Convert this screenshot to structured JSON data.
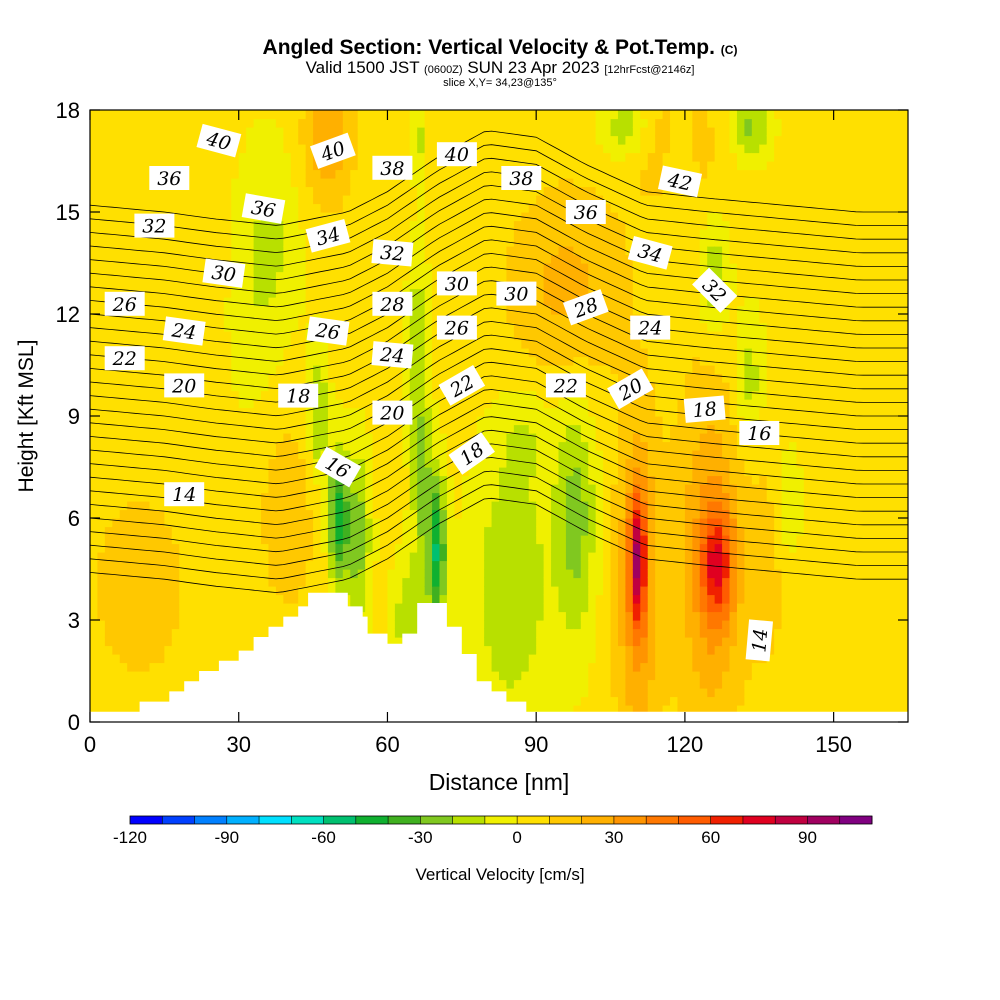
{
  "header": {
    "title": "Angled Section: Vertical Velocity & Pot.Temp.",
    "title_tag": "(C)",
    "subtitle_a": "Valid 1500 JST",
    "subtitle_b": "(0600Z)",
    "subtitle_c": "SUN 23 Apr 2023",
    "subtitle_d": "[12hrFcst@2146z]",
    "slice": "slice X,Y= 34,23@135°"
  },
  "chart_data": {
    "type": "heatmap",
    "xlabel": "Distance [nm]",
    "ylabel": "Height [Kft MSL]",
    "xlim": [
      0,
      165
    ],
    "ylim": [
      0,
      18
    ],
    "x_ticks": [
      0,
      30,
      60,
      90,
      120,
      150
    ],
    "y_ticks": [
      0,
      3,
      6,
      9,
      12,
      15,
      18
    ],
    "colorbar": {
      "label": "Vertical Velocity [cm/s]",
      "range": [
        -120,
        110
      ],
      "step": 10,
      "ticks": [
        -120,
        -90,
        -60,
        -30,
        0,
        30,
        60,
        90
      ],
      "colors": [
        "#0000ff",
        "#0040ff",
        "#0080ff",
        "#00b0ff",
        "#00e0ff",
        "#00e0c0",
        "#00c070",
        "#10b030",
        "#40b020",
        "#80c820",
        "#b8e000",
        "#f0f000",
        "#ffe000",
        "#ffc800",
        "#ffb000",
        "#ff9400",
        "#ff7800",
        "#ff5c00",
        "#f02000",
        "#e00020",
        "#c00040",
        "#a00060",
        "#800080"
      ]
    },
    "terrain": [
      [
        0,
        0.3
      ],
      [
        10,
        0.3
      ],
      [
        10,
        0.6
      ],
      [
        16,
        0.6
      ],
      [
        16,
        0.9
      ],
      [
        19,
        0.9
      ],
      [
        19,
        1.2
      ],
      [
        22,
        1.2
      ],
      [
        22,
        1.5
      ],
      [
        26,
        1.5
      ],
      [
        26,
        1.8
      ],
      [
        30,
        1.8
      ],
      [
        30,
        2.1
      ],
      [
        33,
        2.1
      ],
      [
        33,
        2.5
      ],
      [
        36,
        2.5
      ],
      [
        36,
        2.8
      ],
      [
        39,
        2.8
      ],
      [
        39,
        3.1
      ],
      [
        42,
        3.1
      ],
      [
        42,
        3.4
      ],
      [
        44,
        3.4
      ],
      [
        44,
        3.8
      ],
      [
        52,
        3.8
      ],
      [
        52,
        3.4
      ],
      [
        55,
        3.4
      ],
      [
        55,
        3.1
      ],
      [
        56,
        3.1
      ],
      [
        56,
        2.6
      ],
      [
        60,
        2.6
      ],
      [
        60,
        2.3
      ],
      [
        63,
        2.3
      ],
      [
        63,
        2.6
      ],
      [
        66,
        2.6
      ],
      [
        66,
        3.5
      ],
      [
        72,
        3.5
      ],
      [
        72,
        2.8
      ],
      [
        75,
        2.8
      ],
      [
        75,
        2.0
      ],
      [
        78,
        2.0
      ],
      [
        78,
        1.2
      ],
      [
        81,
        1.2
      ],
      [
        81,
        0.9
      ],
      [
        84,
        0.9
      ],
      [
        84,
        0.6
      ],
      [
        88,
        0.6
      ],
      [
        88,
        0.3
      ],
      [
        165,
        0.3
      ]
    ],
    "field": {
      "background": 3,
      "blobs": [
        {
          "x": 48,
          "y": 17.2,
          "sx": 5,
          "sy": 2,
          "v": 26
        },
        {
          "x": 96,
          "y": 12.8,
          "sx": 12,
          "sy": 3,
          "v": 20
        },
        {
          "x": 118,
          "y": 17,
          "sx": 10,
          "sy": 2,
          "v": 14
        },
        {
          "x": 10,
          "y": 4,
          "sx": 10,
          "sy": 3,
          "v": 14
        },
        {
          "x": 40,
          "y": 6,
          "sx": 6,
          "sy": 3,
          "v": 14
        },
        {
          "x": 65,
          "y": 16,
          "sx": 4,
          "sy": 2,
          "v": 12
        },
        {
          "x": 148,
          "y": 7,
          "sx": 8,
          "sy": 4,
          "v": 6
        },
        {
          "x": 110.5,
          "y": 4.8,
          "sx": 1.6,
          "sy": 1.9,
          "v": 62
        },
        {
          "x": 110.5,
          "y": 4,
          "sx": 4.5,
          "sy": 5,
          "v": 32
        },
        {
          "x": 126.5,
          "y": 4.6,
          "sx": 3.2,
          "sy": 1.7,
          "v": 48
        },
        {
          "x": 125,
          "y": 4.8,
          "sx": 7,
          "sy": 5.5,
          "v": 28
        },
        {
          "x": 137,
          "y": 5,
          "sx": 4,
          "sy": 4,
          "v": 10
        },
        {
          "x": 50,
          "y": 6,
          "sx": 2,
          "sy": 2,
          "v": -48
        },
        {
          "x": 54,
          "y": 5.5,
          "sx": 2.5,
          "sy": 2.5,
          "v": -30
        },
        {
          "x": 46,
          "y": 9,
          "sx": 2,
          "sy": 2,
          "v": -24
        },
        {
          "x": 70,
          "y": 5,
          "sx": 1.8,
          "sy": 2.2,
          "v": -52
        },
        {
          "x": 67,
          "y": 7,
          "sx": 2,
          "sy": 3,
          "v": -24
        },
        {
          "x": 64,
          "y": 3,
          "sx": 3,
          "sy": 1.8,
          "v": -20
        },
        {
          "x": 85,
          "y": 4,
          "sx": 8,
          "sy": 4,
          "v": -22
        },
        {
          "x": 98,
          "y": 6,
          "sx": 4,
          "sy": 3.5,
          "v": -28
        },
        {
          "x": 88,
          "y": 8.5,
          "sx": 6,
          "sy": 1.5,
          "v": -10
        },
        {
          "x": 66,
          "y": 12,
          "sx": 2,
          "sy": 4,
          "v": -16
        },
        {
          "x": 66,
          "y": 17,
          "sx": 2,
          "sy": 1.5,
          "v": -22
        },
        {
          "x": 36,
          "y": 14,
          "sx": 6,
          "sy": 3,
          "v": -16
        },
        {
          "x": 32,
          "y": 11,
          "sx": 4,
          "sy": 2,
          "v": -6
        },
        {
          "x": 108,
          "y": 17.5,
          "sx": 5,
          "sy": 1,
          "v": -22
        },
        {
          "x": 126,
          "y": 13,
          "sx": 3,
          "sy": 1.8,
          "v": -22
        },
        {
          "x": 133,
          "y": 10,
          "sx": 3,
          "sy": 2,
          "v": -20
        },
        {
          "x": 141,
          "y": 6.5,
          "sx": 3,
          "sy": 1.8,
          "v": -18
        },
        {
          "x": 133,
          "y": 17.5,
          "sx": 4,
          "sy": 1,
          "v": -26
        },
        {
          "x": 119,
          "y": 16.5,
          "sx": 3,
          "sy": 1.5,
          "v": -14
        }
      ]
    },
    "isentropes": {
      "base": [
        [
          0,
          9.2
        ],
        [
          15,
          9.0
        ],
        [
          25,
          8.8
        ],
        [
          38,
          8.6
        ],
        [
          45,
          8.8
        ],
        [
          52,
          9.0
        ],
        [
          60,
          9.6
        ],
        [
          70,
          10.6
        ],
        [
          80,
          11.4
        ],
        [
          90,
          11.2
        ],
        [
          100,
          10.4
        ],
        [
          112,
          9.6
        ],
        [
          125,
          9.4
        ],
        [
          140,
          9.2
        ],
        [
          155,
          9.0
        ],
        [
          165,
          9.0
        ]
      ],
      "spacing": 0.4,
      "count": 28,
      "start": -12
    },
    "contour_labels": [
      {
        "text": "40",
        "x": 26,
        "y": 17.1,
        "r": 15
      },
      {
        "text": "40",
        "x": 49,
        "y": 16.8,
        "r": -20
      },
      {
        "text": "40",
        "x": 74,
        "y": 16.7,
        "r": 0
      },
      {
        "text": "36",
        "x": 16,
        "y": 16.0,
        "r": 0
      },
      {
        "text": "36",
        "x": 35,
        "y": 15.1,
        "r": 10
      },
      {
        "text": "38",
        "x": 61,
        "y": 16.3,
        "r": 0
      },
      {
        "text": "38",
        "x": 87,
        "y": 16.0,
        "r": 0
      },
      {
        "text": "36",
        "x": 100,
        "y": 15.0,
        "r": 0
      },
      {
        "text": "42",
        "x": 119,
        "y": 15.9,
        "r": 12
      },
      {
        "text": "32",
        "x": 13,
        "y": 14.6,
        "r": 0
      },
      {
        "text": "34",
        "x": 48,
        "y": 14.3,
        "r": -15
      },
      {
        "text": "32",
        "x": 61,
        "y": 13.8,
        "r": 5
      },
      {
        "text": "34",
        "x": 113,
        "y": 13.8,
        "r": 15
      },
      {
        "text": "30",
        "x": 27,
        "y": 13.2,
        "r": 8
      },
      {
        "text": "30",
        "x": 74,
        "y": 12.9,
        "r": 0
      },
      {
        "text": "30",
        "x": 86,
        "y": 12.6,
        "r": 0
      },
      {
        "text": "28",
        "x": 61,
        "y": 12.3,
        "r": 0
      },
      {
        "text": "28",
        "x": 100,
        "y": 12.2,
        "r": -20
      },
      {
        "text": "32",
        "x": 126,
        "y": 12.7,
        "r": 45
      },
      {
        "text": "26",
        "x": 7,
        "y": 12.3,
        "r": 0
      },
      {
        "text": "24",
        "x": 19,
        "y": 11.5,
        "r": 8
      },
      {
        "text": "26",
        "x": 48,
        "y": 11.5,
        "r": 8
      },
      {
        "text": "26",
        "x": 74,
        "y": 11.6,
        "r": 0
      },
      {
        "text": "24",
        "x": 113,
        "y": 11.6,
        "r": 0
      },
      {
        "text": "22",
        "x": 7,
        "y": 10.7,
        "r": 0
      },
      {
        "text": "24",
        "x": 61,
        "y": 10.8,
        "r": 5
      },
      {
        "text": "22",
        "x": 75,
        "y": 9.9,
        "r": -30
      },
      {
        "text": "22",
        "x": 96,
        "y": 9.9,
        "r": 0
      },
      {
        "text": "20",
        "x": 19,
        "y": 9.9,
        "r": 0
      },
      {
        "text": "20",
        "x": 61,
        "y": 9.1,
        "r": 0
      },
      {
        "text": "20",
        "x": 109,
        "y": 9.8,
        "r": -30
      },
      {
        "text": "18",
        "x": 42,
        "y": 9.6,
        "r": 0
      },
      {
        "text": "18",
        "x": 124,
        "y": 9.2,
        "r": -5
      },
      {
        "text": "16",
        "x": 50,
        "y": 7.5,
        "r": 30
      },
      {
        "text": "18",
        "x": 77,
        "y": 7.9,
        "r": -35
      },
      {
        "text": "16",
        "x": 135,
        "y": 8.5,
        "r": 0
      },
      {
        "text": "14",
        "x": 19,
        "y": 6.7,
        "r": 0
      },
      {
        "text": "14",
        "x": 135,
        "y": 2.4,
        "r": -85
      }
    ]
  }
}
